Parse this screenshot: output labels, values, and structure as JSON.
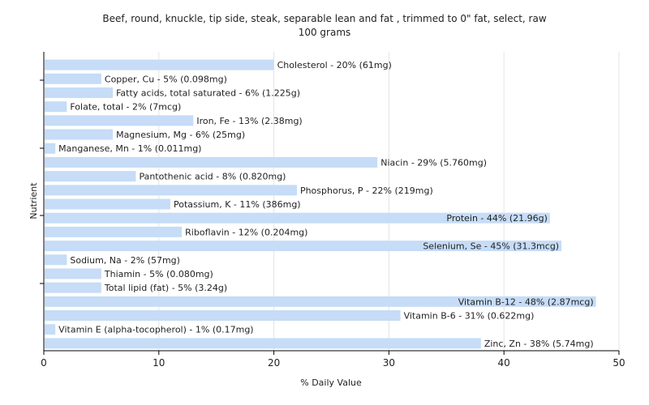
{
  "title_line1": "Beef, round, knuckle, tip side, steak, separable lean and fat , trimmed to 0\" fat, select, raw",
  "title_line2": "100 grams",
  "chart_data": {
    "type": "bar",
    "orientation": "horizontal",
    "xlabel": "% Daily Value",
    "ylabel": "Nutrient",
    "xlim": [
      0,
      50
    ],
    "xticks": [
      0,
      10,
      20,
      30,
      40,
      50
    ],
    "grid": "vertical",
    "bar_color": "#c6dcf7",
    "categories": [
      "Cholesterol",
      "Copper, Cu",
      "Fatty acids, total saturated",
      "Folate, total",
      "Iron, Fe",
      "Magnesium, Mg",
      "Manganese, Mn",
      "Niacin",
      "Pantothenic acid",
      "Phosphorus, P",
      "Potassium, K",
      "Protein",
      "Riboflavin",
      "Selenium, Se",
      "Sodium, Na",
      "Thiamin",
      "Total lipid (fat)",
      "Vitamin B-12",
      "Vitamin B-6",
      "Vitamin E (alpha-tocopherol)",
      "Zinc, Zn"
    ],
    "values": [
      20,
      5,
      6,
      2,
      13,
      6,
      1,
      29,
      8,
      22,
      11,
      44,
      12,
      45,
      2,
      5,
      5,
      48,
      31,
      1,
      38
    ],
    "labels": [
      "Cholesterol - 20% (61mg)",
      "Copper, Cu - 5% (0.098mg)",
      "Fatty acids, total saturated - 6% (1.225g)",
      "Folate, total - 2% (7mcg)",
      "Iron, Fe - 13% (2.38mg)",
      "Magnesium, Mg - 6% (25mg)",
      "Manganese, Mn - 1% (0.011mg)",
      "Niacin - 29% (5.760mg)",
      "Pantothenic acid - 8% (0.820mg)",
      "Phosphorus, P - 22% (219mg)",
      "Potassium, K - 11% (386mg)",
      "Protein - 44% (21.96g)",
      "Riboflavin - 12% (0.204mg)",
      "Selenium, Se - 45% (31.3mcg)",
      "Sodium, Na - 2% (57mg)",
      "Thiamin - 5% (0.080mg)",
      "Total lipid (fat) - 5% (3.24g)",
      "Vitamin B-12 - 48% (2.87mcg)",
      "Vitamin B-6 - 31% (0.622mg)",
      "Vitamin E (alpha-tocopherol) - 1% (0.17mg)",
      "Zinc, Zn - 38% (5.74mg)"
    ]
  }
}
